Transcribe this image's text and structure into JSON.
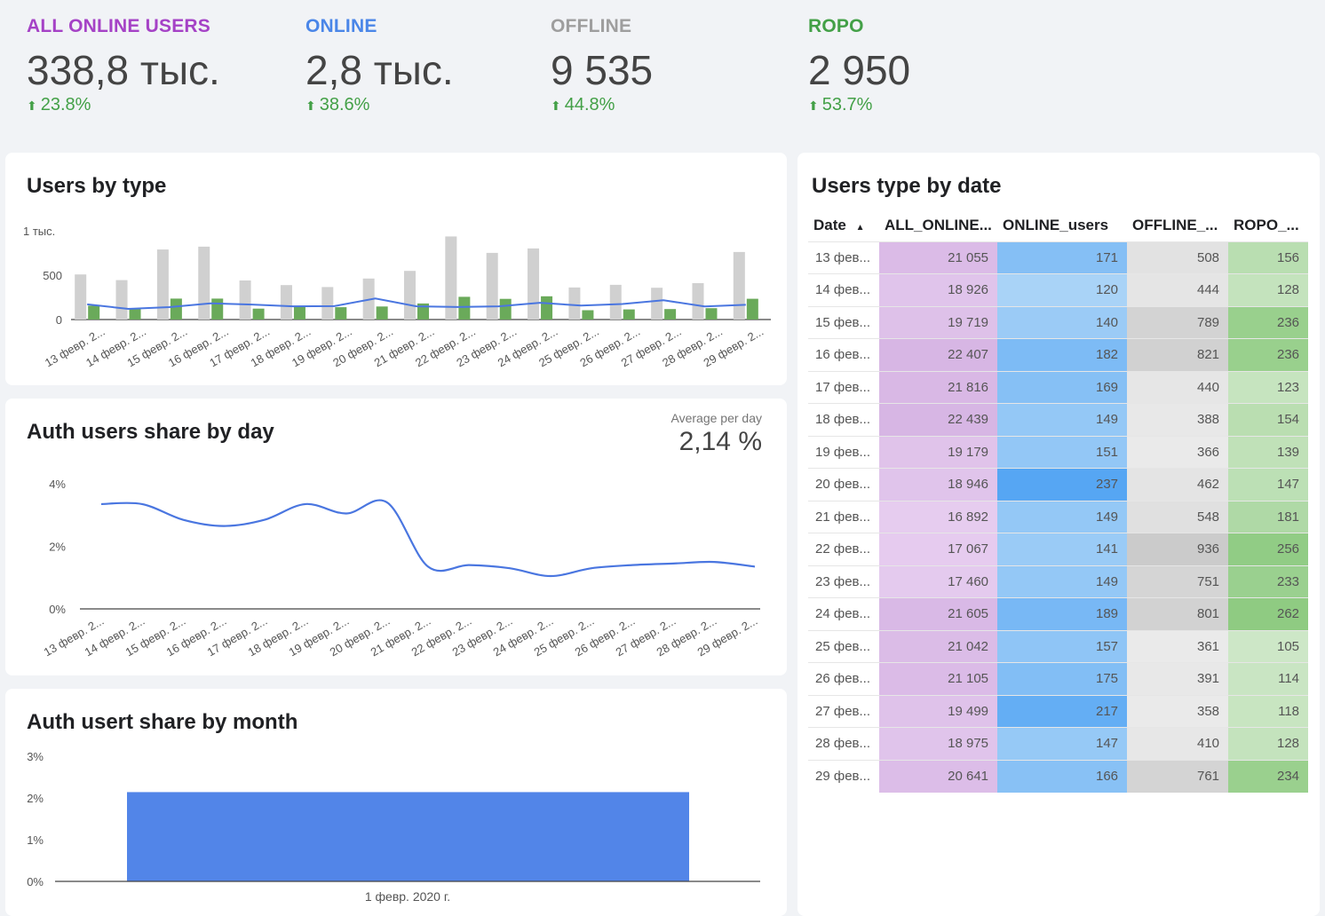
{
  "kpis": [
    {
      "label": "ALL ONLINE USERS",
      "value": "338,8 тыс.",
      "delta": "23.8%",
      "color": "#a542c6"
    },
    {
      "label": "ONLINE",
      "value": "2,8 тыс.",
      "delta": "38.6%",
      "color": "#4a86e8"
    },
    {
      "label": "OFFLINE",
      "value": "9 535",
      "delta": "44.8%",
      "color": "#9e9e9e"
    },
    {
      "label": "ROPO",
      "value": "2 950",
      "delta": "53.7%",
      "color": "#43a047"
    }
  ],
  "users_by_type": {
    "title": "Users by type",
    "y_ticks": [
      "1 тыс.",
      "500",
      "0"
    ]
  },
  "auth_share_day": {
    "title": "Auth users share by day",
    "avg_label": "Average per day",
    "avg_value": "2,14 %",
    "y_ticks": [
      "4%",
      "2%",
      "0%"
    ]
  },
  "auth_share_month": {
    "title": "Auth usert share by month",
    "y_ticks": [
      "3%",
      "2%",
      "1%",
      "0%"
    ]
  },
  "table": {
    "title": "Users type by date",
    "sort_icon": "sort-ascending-icon",
    "headers": [
      "Date",
      "ALL_ONLINE...",
      "ONLINE_users",
      "OFFLINE_...",
      "ROPO_..."
    ],
    "rows": [
      [
        "13 фев...",
        "21 055",
        "171",
        "508",
        "156"
      ],
      [
        "14 фев...",
        "18 926",
        "120",
        "444",
        "128"
      ],
      [
        "15 фев...",
        "19 719",
        "140",
        "789",
        "236"
      ],
      [
        "16 фев...",
        "22 407",
        "182",
        "821",
        "236"
      ],
      [
        "17 фев...",
        "21 816",
        "169",
        "440",
        "123"
      ],
      [
        "18 фев...",
        "22 439",
        "149",
        "388",
        "154"
      ],
      [
        "19 фев...",
        "19 179",
        "151",
        "366",
        "139"
      ],
      [
        "20 фев...",
        "18 946",
        "237",
        "462",
        "147"
      ],
      [
        "21 фев...",
        "16 892",
        "149",
        "548",
        "181"
      ],
      [
        "22 фев...",
        "17 067",
        "141",
        "936",
        "256"
      ],
      [
        "23 фев...",
        "17 460",
        "149",
        "751",
        "233"
      ],
      [
        "24 фев...",
        "21 605",
        "189",
        "801",
        "262"
      ],
      [
        "25 фев...",
        "21 042",
        "157",
        "361",
        "105"
      ],
      [
        "26 фев...",
        "21 105",
        "175",
        "391",
        "114"
      ],
      [
        "27 фев...",
        "19 499",
        "217",
        "358",
        "118"
      ],
      [
        "28 фев...",
        "18 975",
        "147",
        "410",
        "128"
      ],
      [
        "29 фев...",
        "20 641",
        "166",
        "761",
        "234"
      ]
    ]
  },
  "chart_data": [
    {
      "type": "bar",
      "title": "Users by type",
      "categories": [
        "13 февр. 2...",
        "14 февр. 2...",
        "15 февр. 2...",
        "16 февр. 2...",
        "17 февр. 2...",
        "18 февр. 2...",
        "19 февр. 2...",
        "20 февр. 2...",
        "21 февр. 2...",
        "22 февр. 2...",
        "23 февр. 2...",
        "24 февр. 2...",
        "25 февр. 2...",
        "26 февр. 2...",
        "27 февр. 2...",
        "28 февр. 2...",
        "29 февр. 2..."
      ],
      "series": [
        {
          "values": [
            508,
            444,
            789,
            821,
            440,
            388,
            366,
            462,
            548,
            936,
            751,
            801,
            361,
            391,
            358,
            410,
            761
          ],
          "color": "#d0d0d0",
          "kind": "bar"
        },
        {
          "values": [
            156,
            128,
            236,
            236,
            123,
            154,
            139,
            147,
            181,
            256,
            233,
            262,
            105,
            114,
            118,
            128,
            234
          ],
          "color": "#6aaa5a",
          "kind": "bar"
        },
        {
          "values": [
            171,
            120,
            140,
            182,
            169,
            149,
            151,
            237,
            149,
            141,
            149,
            189,
            157,
            175,
            217,
            147,
            166
          ],
          "color": "#4a76e0",
          "kind": "line"
        }
      ],
      "ylim": [
        0,
        1000
      ]
    },
    {
      "type": "line",
      "title": "Auth users share by day",
      "categories": [
        "13 февр. 2...",
        "14 февр. 2...",
        "15 февр. 2...",
        "16 февр. 2...",
        "17 февр. 2...",
        "18 февр. 2...",
        "19 февр. 2...",
        "20 февр. 2...",
        "21 февр. 2...",
        "22 февр. 2...",
        "23 февр. 2...",
        "24 февр. 2...",
        "25 февр. 2...",
        "26 февр. 2...",
        "27 февр. 2...",
        "28 февр. 2...",
        "29 февр. 2..."
      ],
      "series": [
        {
          "values": [
            3.35,
            3.35,
            2.85,
            2.65,
            2.85,
            3.35,
            3.05,
            3.4,
            1.35,
            1.4,
            1.3,
            1.05,
            1.3,
            1.4,
            1.45,
            1.5,
            1.35
          ],
          "color": "#4a76e0"
        }
      ],
      "ylim": [
        0,
        4
      ]
    },
    {
      "type": "bar",
      "title": "Auth usert share by month",
      "categories": [
        "1 февр. 2020 г."
      ],
      "series": [
        {
          "values": [
            2.14
          ],
          "color": "#5285e8"
        }
      ],
      "ylim": [
        0,
        3
      ]
    }
  ]
}
